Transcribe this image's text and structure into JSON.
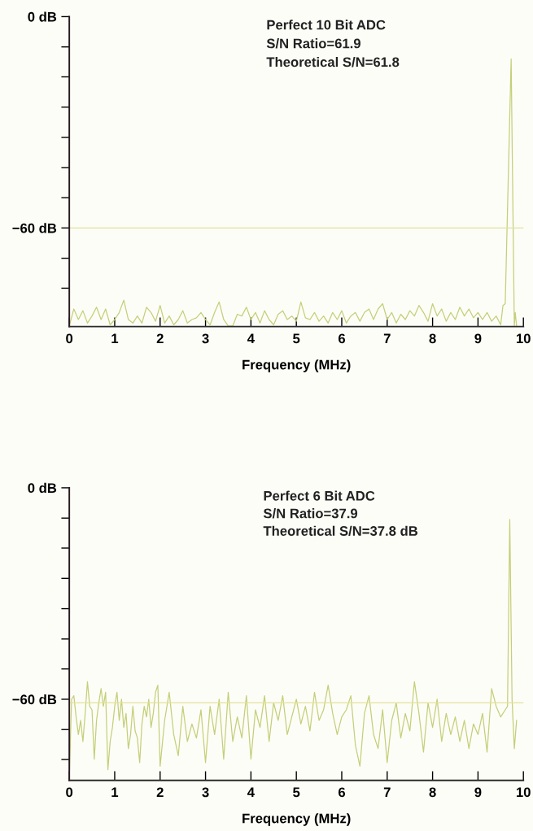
{
  "chart_data": [
    {
      "type": "line",
      "xlabel": "Frequency (MHz)",
      "annotations": [
        "Perfect 10 Bit ADC",
        "S/N Ratio=61.9",
        "Theoretical S/N=61.8"
      ],
      "xlim": [
        0,
        10
      ],
      "ylim": [
        -88,
        0
      ],
      "xticks": [
        0,
        1,
        2,
        3,
        4,
        5,
        6,
        7,
        8,
        9,
        10
      ],
      "yticks": [
        {
          "value": 0,
          "label": "0 dB"
        },
        {
          "value": -8.6,
          "label": null
        },
        {
          "value": -17.1,
          "label": null
        },
        {
          "value": -25.7,
          "label": null
        },
        {
          "value": -34.3,
          "label": null
        },
        {
          "value": -42.9,
          "label": null
        },
        {
          "value": -51.4,
          "label": null
        },
        {
          "value": -60,
          "label": "−60 dB"
        },
        {
          "value": -68.6,
          "label": null
        },
        {
          "value": -77.1,
          "label": null
        }
      ],
      "grid": false,
      "legend": false,
      "ref_lines": [
        {
          "axis": "y",
          "value": -60,
          "label": null,
          "color": "#e2e39a"
        }
      ],
      "series": [
        {
          "color": "#c5cf78",
          "x": [
            0.0,
            0.1,
            0.2,
            0.3,
            0.4,
            0.5,
            0.6,
            0.7,
            0.8,
            0.9,
            1.0,
            1.1,
            1.2,
            1.3,
            1.4,
            1.5,
            1.6,
            1.7,
            1.8,
            1.9,
            2.0,
            2.1,
            2.2,
            2.3,
            2.4,
            2.5,
            2.6,
            2.7,
            2.8,
            2.9,
            3.0,
            3.1,
            3.2,
            3.3,
            3.4,
            3.5,
            3.6,
            3.7,
            3.8,
            3.9,
            4.0,
            4.1,
            4.2,
            4.3,
            4.4,
            4.5,
            4.6,
            4.7,
            4.8,
            4.9,
            5.0,
            5.1,
            5.2,
            5.3,
            5.4,
            5.5,
            5.6,
            5.7,
            5.8,
            5.9,
            6.0,
            6.1,
            6.2,
            6.3,
            6.4,
            6.5,
            6.6,
            6.7,
            6.8,
            6.9,
            7.0,
            7.1,
            7.2,
            7.3,
            7.4,
            7.5,
            7.6,
            7.7,
            7.8,
            7.9,
            8.0,
            8.1,
            8.2,
            8.3,
            8.4,
            8.5,
            8.6,
            8.7,
            8.8,
            8.9,
            9.0,
            9.1,
            9.2,
            9.3,
            9.4,
            9.5,
            9.55,
            9.6,
            9.73,
            9.8,
            9.82,
            9.85
          ],
          "values": [
            -87.8,
            -83,
            -86,
            -83.5,
            -87,
            -85,
            -82.5,
            -86,
            -83,
            -87.5,
            -86,
            -84,
            -80.5,
            -86,
            -87,
            -85,
            -87,
            -82.5,
            -84,
            -86.5,
            -82,
            -87,
            -85,
            -87.5,
            -86,
            -83.5,
            -87,
            -86,
            -85.5,
            -84,
            -86,
            -87.5,
            -84,
            -81,
            -86,
            -87.8,
            -87.8,
            -84.5,
            -85,
            -82.5,
            -86,
            -84,
            -87,
            -83.5,
            -86,
            -87.5,
            -84.5,
            -83.5,
            -86,
            -85,
            -86.5,
            -81,
            -85.5,
            -86,
            -84,
            -86.5,
            -85,
            -87,
            -84,
            -86,
            -83.5,
            -87,
            -85,
            -84,
            -86.5,
            -84,
            -83,
            -86,
            -83,
            -81.5,
            -86,
            -84,
            -87,
            -84.5,
            -86,
            -83.5,
            -85,
            -82,
            -84,
            -86.5,
            -81.5,
            -85,
            -83,
            -86.5,
            -84,
            -86,
            -82.5,
            -85,
            -83,
            -85.5,
            -84,
            -86,
            -84,
            -86.5,
            -85,
            -87.5,
            -82,
            -81.5,
            -12,
            -87.8,
            -84,
            -87.8
          ]
        }
      ]
    },
    {
      "type": "line",
      "xlabel": "Frequency (MHz)",
      "annotations": [
        "Perfect 6 Bit ADC",
        "S/N Ratio=37.9",
        "Theoretical S/N=37.8 dB"
      ],
      "xlim": [
        0,
        10
      ],
      "ylim": [
        -83,
        0
      ],
      "xticks": [
        0,
        1,
        2,
        3,
        4,
        5,
        6,
        7,
        8,
        9,
        10
      ],
      "yticks": [
        {
          "value": 0,
          "label": "0 dB"
        },
        {
          "value": -8.6,
          "label": null
        },
        {
          "value": -17.1,
          "label": null
        },
        {
          "value": -25.7,
          "label": null
        },
        {
          "value": -34.3,
          "label": null
        },
        {
          "value": -42.9,
          "label": null
        },
        {
          "value": -51.4,
          "label": null
        },
        {
          "value": -60,
          "label": "−60 dB"
        },
        {
          "value": -68.6,
          "label": null
        },
        {
          "value": -77.1,
          "label": null
        }
      ],
      "grid": false,
      "legend": false,
      "ref_lines": [
        {
          "axis": "y",
          "value": -61,
          "label": null,
          "color": "#e2e39a"
        }
      ],
      "series": [
        {
          "color": "#c5cf78",
          "x": [
            0.0,
            0.05,
            0.1,
            0.15,
            0.2,
            0.25,
            0.3,
            0.35,
            0.4,
            0.45,
            0.5,
            0.55,
            0.6,
            0.65,
            0.7,
            0.75,
            0.8,
            0.85,
            0.9,
            0.95,
            1.0,
            1.05,
            1.1,
            1.15,
            1.2,
            1.25,
            1.3,
            1.35,
            1.4,
            1.45,
            1.5,
            1.55,
            1.6,
            1.65,
            1.7,
            1.75,
            1.8,
            1.85,
            1.9,
            1.95,
            2.0,
            2.1,
            2.2,
            2.3,
            2.4,
            2.5,
            2.6,
            2.7,
            2.8,
            2.9,
            3.0,
            3.1,
            3.2,
            3.3,
            3.4,
            3.5,
            3.6,
            3.7,
            3.8,
            3.9,
            4.0,
            4.1,
            4.2,
            4.3,
            4.4,
            4.5,
            4.6,
            4.7,
            4.8,
            4.9,
            5.0,
            5.1,
            5.2,
            5.3,
            5.4,
            5.5,
            5.6,
            5.7,
            5.8,
            5.9,
            6.0,
            6.1,
            6.2,
            6.3,
            6.4,
            6.5,
            6.6,
            6.7,
            6.8,
            6.9,
            7.0,
            7.1,
            7.2,
            7.3,
            7.4,
            7.5,
            7.6,
            7.7,
            7.8,
            7.9,
            8.0,
            8.1,
            8.2,
            8.3,
            8.4,
            8.5,
            8.6,
            8.7,
            8.8,
            8.9,
            9.0,
            9.1,
            9.2,
            9.3,
            9.4,
            9.5,
            9.6,
            9.65,
            9.7,
            9.75,
            9.8,
            9.85
          ],
          "values": [
            -82.8,
            -60,
            -59,
            -65,
            -70,
            -66,
            -72,
            -64,
            -55,
            -62,
            -63,
            -77,
            -66,
            -61,
            -57,
            -62,
            -58,
            -80,
            -72,
            -68,
            -62,
            -58,
            -66,
            -60,
            -68,
            -64,
            -74,
            -70,
            -62,
            -69,
            -71,
            -78,
            -67,
            -62,
            -65,
            -60,
            -68,
            -64,
            -58,
            -56,
            -79,
            -66,
            -58,
            -70,
            -76,
            -62,
            -72,
            -67,
            -71,
            -63,
            -78,
            -62,
            -70,
            -60,
            -77,
            -58,
            -72,
            -65,
            -71,
            -59,
            -77,
            -63,
            -68,
            -59,
            -72,
            -61,
            -66,
            -59,
            -70,
            -65,
            -60,
            -67,
            -62,
            -69,
            -58,
            -66,
            -63,
            -56,
            -64,
            -70,
            -65,
            -63,
            -59,
            -73,
            -79,
            -64,
            -59,
            -70,
            -74,
            -63,
            -78,
            -66,
            -61,
            -71,
            -64,
            -69,
            -55,
            -64,
            -75,
            -61,
            -68,
            -60,
            -72,
            -64,
            -70,
            -65,
            -72,
            -66,
            -74,
            -67,
            -70,
            -64,
            -75,
            -57,
            -62,
            -65,
            -63,
            -62,
            -9,
            -60,
            -74,
            -66
          ]
        }
      ]
    }
  ]
}
